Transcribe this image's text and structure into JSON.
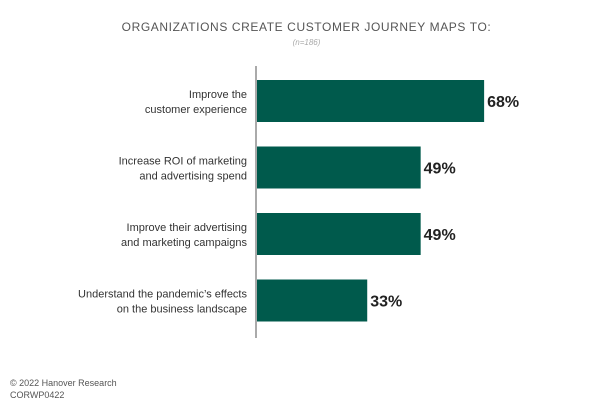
{
  "chart_data": {
    "type": "bar",
    "orientation": "horizontal",
    "title": "ORGANIZATIONS CREATE CUSTOMER JOURNEY MAPS TO:",
    "subtitle": "(n=186)",
    "categories": [
      [
        "Improve the",
        "customer experience"
      ],
      [
        "Increase ROI of marketing",
        "and advertising spend"
      ],
      [
        "Improve their advertising",
        "and marketing campaigns"
      ],
      [
        "Understand the pandemic’s effects",
        "on the business landscape"
      ]
    ],
    "values": [
      68,
      49,
      49,
      33
    ],
    "value_labels": [
      "68%",
      "49%",
      "49%",
      "33%"
    ],
    "xlim": [
      0,
      100
    ],
    "bar_color": "#005a4c",
    "grid": false
  },
  "footer": {
    "copyright": "© 2022 Hanover Research",
    "code": "CORWP0422"
  }
}
